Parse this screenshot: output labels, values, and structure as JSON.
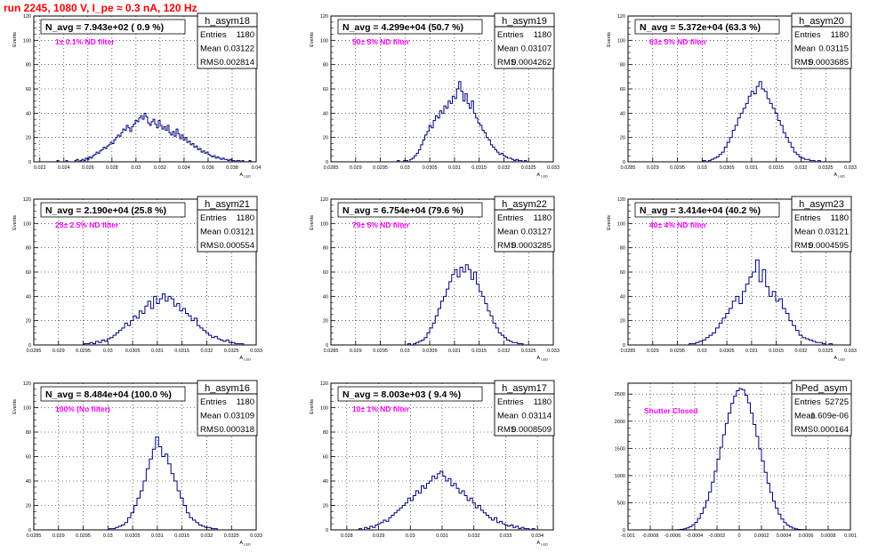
{
  "page_title": "run 2245,  1080 V, I_pe ≈ 0.3 nA, 120 Hz",
  "stats_labels": {
    "entries": "Entries",
    "mean": "Mean",
    "rms": "RMS"
  },
  "colors": {
    "title": "#ff0000",
    "annotation": "#ff00ff",
    "histogram": "#000080",
    "frame": "#000000"
  },
  "chart_data": [
    {
      "type": "histogram",
      "name": "h_asym18",
      "nav": "N_avg = 7.943e+02 ( 0.9 %)",
      "annotation": "1± 0.1% ND filter",
      "entries": "1180",
      "mean": "0.03122",
      "rms": "0.002814",
      "xlabel": "A_LED",
      "ylabel": "Events",
      "xlim": [
        0.0215,
        0.04
      ],
      "ylim": [
        0,
        120
      ],
      "xticks": [
        0.022,
        0.024,
        0.026,
        0.028,
        0.03,
        0.032,
        0.034,
        0.036,
        0.038,
        0.04
      ],
      "xtick_labels": [
        "0.022",
        "0.024",
        "0.026",
        "0.028",
        "0.03",
        "0.032",
        "0.034",
        "0.036",
        "0.038",
        "0.04"
      ],
      "yticks": [
        0,
        20,
        40,
        60,
        80,
        100,
        120
      ],
      "xmin": 0.0215,
      "xmax": 0.04,
      "values": [
        0,
        0,
        0,
        0,
        0,
        0,
        0,
        0,
        0,
        0,
        0,
        0,
        0,
        1,
        0,
        0,
        0,
        0,
        1,
        0,
        0,
        0,
        0,
        1,
        2,
        0,
        1,
        2,
        1,
        3,
        2,
        4,
        3,
        5,
        6,
        8,
        7,
        9,
        10,
        12,
        11,
        13,
        14,
        16,
        15,
        18,
        20,
        22,
        21,
        24,
        27,
        26,
        30,
        28,
        25,
        29,
        31,
        34,
        33,
        36,
        38,
        35,
        40,
        37,
        32,
        30,
        33,
        35,
        31,
        28,
        34,
        30,
        27,
        29,
        26,
        30,
        24,
        22,
        25,
        21,
        27,
        23,
        19,
        22,
        18,
        20,
        16,
        17,
        14,
        15,
        12,
        13,
        10,
        11,
        8,
        9,
        7,
        8,
        6,
        5,
        4,
        5,
        3,
        4,
        3,
        2,
        3,
        2,
        2,
        1,
        2,
        1,
        1,
        0,
        1,
        1,
        0,
        1,
        0,
        0,
        0,
        1,
        0,
        0,
        0
      ]
    },
    {
      "type": "histogram",
      "name": "h_asym19",
      "nav": "N_avg = 4.299e+04 (50.7 %)",
      "annotation": "50± 5% ND filter",
      "entries": "1180",
      "mean": "0.03107",
      "rms": "0.0004262",
      "xlabel": "A_LED",
      "ylabel": "Events",
      "xlim": [
        0.0285,
        0.033
      ],
      "ylim": [
        0,
        120
      ],
      "xticks": [
        0.0285,
        0.029,
        0.0295,
        0.03,
        0.0305,
        0.031,
        0.0315,
        0.032,
        0.0325,
        0.033
      ],
      "xtick_labels": [
        "0.0285",
        "0.029",
        "0.0295",
        "0.03",
        "0.0305",
        "0.031",
        "0.0315",
        "0.032",
        "0.0325",
        "0.033"
      ],
      "yticks": [
        0,
        20,
        40,
        60,
        80,
        100,
        120
      ],
      "xmin": 0.0295,
      "xmax": 0.0325,
      "values": [
        0,
        0,
        0,
        0,
        0,
        0,
        0,
        0,
        1,
        0,
        0,
        1,
        1,
        0,
        2,
        3,
        5,
        7,
        10,
        14,
        18,
        22,
        25,
        30,
        28,
        34,
        38,
        36,
        42,
        40,
        46,
        44,
        50,
        48,
        54,
        52,
        60,
        66,
        58,
        50,
        56,
        48,
        44,
        50,
        40,
        36,
        32,
        30,
        26,
        24,
        20,
        18,
        14,
        12,
        10,
        8,
        6,
        7,
        5,
        4,
        3,
        3,
        2,
        1,
        2,
        1,
        1,
        0,
        1,
        0
      ]
    },
    {
      "type": "histogram",
      "name": "h_asym20",
      "nav": "N_avg = 5.372e+04 (63.3 %)",
      "annotation": "63± 5% ND filter",
      "entries": "1180",
      "mean": "0.03115",
      "rms": "0.0003685",
      "xlabel": "A_LED",
      "ylabel": "Events",
      "xlim": [
        0.0285,
        0.033
      ],
      "ylim": [
        0,
        120
      ],
      "xticks": [
        0.0285,
        0.029,
        0.0295,
        0.03,
        0.0305,
        0.031,
        0.0315,
        0.032,
        0.0325,
        0.033
      ],
      "xtick_labels": [
        "0.0285",
        "0.029",
        "0.0295",
        "0.03",
        "0.0305",
        "0.031",
        "0.0315",
        "0.032",
        "0.0325",
        "0.033"
      ],
      "yticks": [
        0,
        20,
        40,
        60,
        80,
        100,
        120
      ],
      "xmin": 0.0298,
      "xmax": 0.0325,
      "values": [
        0,
        0,
        0,
        0,
        1,
        0,
        1,
        2,
        3,
        4,
        6,
        8,
        12,
        16,
        20,
        26,
        30,
        36,
        40,
        44,
        48,
        54,
        58,
        56,
        62,
        66,
        60,
        58,
        52,
        48,
        44,
        40,
        34,
        30,
        24,
        20,
        16,
        12,
        8,
        6,
        4,
        3,
        2,
        2,
        1,
        1,
        0,
        1,
        0,
        0
      ]
    },
    {
      "type": "histogram",
      "name": "h_asym21",
      "nav": "N_avg = 2.190e+04 (25.8 %)",
      "annotation": "25± 2.5% ND filter",
      "entries": "1180",
      "mean": "0.03121",
      "rms": "0.000554",
      "xlabel": "A_LED",
      "ylabel": "Events",
      "xlim": [
        0.0285,
        0.033
      ],
      "ylim": [
        0,
        120
      ],
      "xticks": [
        0.0285,
        0.029,
        0.0295,
        0.03,
        0.0305,
        0.031,
        0.0315,
        0.032,
        0.0325,
        0.033
      ],
      "xtick_labels": [
        "0.0285",
        "0.029",
        "0.0295",
        "0.03",
        "0.0305",
        "0.031",
        "0.0315",
        "0.032",
        "0.0325",
        "0.033"
      ],
      "yticks": [
        0,
        20,
        40,
        60,
        80,
        100,
        120
      ],
      "xmin": 0.0294,
      "xmax": 0.0328,
      "values": [
        0,
        0,
        1,
        1,
        2,
        1,
        3,
        2,
        4,
        3,
        5,
        6,
        8,
        10,
        12,
        14,
        18,
        16,
        20,
        24,
        22,
        28,
        26,
        32,
        36,
        30,
        40,
        34,
        38,
        42,
        36,
        40,
        38,
        32,
        34,
        28,
        30,
        26,
        24,
        20,
        22,
        16,
        14,
        12,
        10,
        8,
        6,
        7,
        5,
        4,
        3,
        4,
        2,
        2,
        1,
        1,
        1,
        0
      ]
    },
    {
      "type": "histogram",
      "name": "h_asym22",
      "nav": "N_avg = 6.754e+04 (79.6 %)",
      "annotation": "79± 5% ND filter",
      "entries": "1180",
      "mean": "0.03127",
      "rms": "0.0003285",
      "xlabel": "A_LED",
      "ylabel": "Events",
      "xlim": [
        0.0285,
        0.033
      ],
      "ylim": [
        0,
        120
      ],
      "xticks": [
        0.0285,
        0.029,
        0.0295,
        0.03,
        0.0305,
        0.031,
        0.0315,
        0.032,
        0.0325,
        0.033
      ],
      "xtick_labels": [
        "0.0285",
        "0.029",
        "0.0295",
        "0.03",
        "0.0305",
        "0.031",
        "0.0315",
        "0.032",
        "0.0325",
        "0.033"
      ],
      "yticks": [
        0,
        20,
        40,
        60,
        80,
        100,
        120
      ],
      "xmin": 0.03,
      "xmax": 0.0325,
      "values": [
        0,
        1,
        0,
        1,
        2,
        3,
        4,
        6,
        10,
        14,
        18,
        24,
        30,
        36,
        40,
        46,
        52,
        58,
        62,
        56,
        64,
        60,
        66,
        62,
        54,
        60,
        50,
        44,
        40,
        34,
        28,
        24,
        18,
        14,
        10,
        8,
        6,
        4,
        3,
        2,
        2,
        1,
        1,
        0,
        0
      ]
    },
    {
      "type": "histogram",
      "name": "h_asym23",
      "nav": "N_avg = 3.414e+04 (40.2 %)",
      "annotation": "40± 4% ND filter",
      "entries": "1180",
      "mean": "0.03121",
      "rms": "0.0004595",
      "xlabel": "A_LED",
      "ylabel": "Events",
      "xlim": [
        0.0285,
        0.033
      ],
      "ylim": [
        0,
        120
      ],
      "xticks": [
        0.0285,
        0.029,
        0.0295,
        0.03,
        0.0305,
        0.031,
        0.0315,
        0.032,
        0.0325,
        0.033
      ],
      "xtick_labels": [
        "0.0285",
        "0.029",
        "0.0295",
        "0.03",
        "0.0305",
        "0.031",
        "0.0315",
        "0.032",
        "0.0325",
        "0.033"
      ],
      "yticks": [
        0,
        20,
        40,
        60,
        80,
        100,
        120
      ],
      "xmin": 0.0296,
      "xmax": 0.0327,
      "values": [
        0,
        0,
        1,
        1,
        2,
        3,
        4,
        6,
        8,
        10,
        14,
        18,
        22,
        26,
        30,
        36,
        40,
        34,
        44,
        50,
        56,
        60,
        70,
        52,
        62,
        48,
        40,
        44,
        36,
        38,
        30,
        26,
        20,
        16,
        12,
        8,
        6,
        5,
        4,
        3,
        2,
        2,
        1,
        0,
        1,
        0
      ]
    },
    {
      "type": "histogram",
      "name": "h_asym16",
      "nav": "N_avg = 8.484e+04 (100.0 %)",
      "annotation": "100% (No filter)",
      "entries": "1180",
      "mean": "0.03109",
      "rms": "0.000318",
      "xlabel": "A_LED",
      "ylabel": "Events",
      "xlim": [
        0.0285,
        0.033
      ],
      "ylim": [
        0,
        120
      ],
      "xticks": [
        0.0285,
        0.029,
        0.0295,
        0.03,
        0.0305,
        0.031,
        0.0315,
        0.032,
        0.0325,
        0.033
      ],
      "xtick_labels": [
        "0.0285",
        "0.029",
        "0.0295",
        "0.03",
        "0.0305",
        "0.031",
        "0.0315",
        "0.032",
        "0.0325",
        "0.033"
      ],
      "yticks": [
        0,
        20,
        40,
        60,
        80,
        100,
        120
      ],
      "xmin": 0.0299,
      "xmax": 0.0324,
      "values": [
        0,
        0,
        1,
        1,
        2,
        3,
        4,
        6,
        10,
        14,
        20,
        26,
        32,
        40,
        50,
        58,
        66,
        76,
        68,
        60,
        62,
        54,
        46,
        40,
        32,
        26,
        20,
        14,
        10,
        8,
        6,
        4,
        3,
        2,
        2,
        1,
        1,
        0,
        0,
        0
      ]
    },
    {
      "type": "histogram",
      "name": "h_asym17",
      "nav": "N_avg = 8.003e+03 ( 9.4 %)",
      "annotation": "10± 1% ND filter",
      "entries": "1180",
      "mean": "0.03114",
      "rms": "0.0008509",
      "xlabel": "A_LED",
      "ylabel": "Events",
      "xlim": [
        0.0275,
        0.0345
      ],
      "ylim": [
        0,
        120
      ],
      "xticks": [
        0.028,
        0.029,
        0.03,
        0.031,
        0.032,
        0.033,
        0.034
      ],
      "xtick_labels": [
        "0.028",
        "0.029",
        "0.03",
        "0.031",
        "0.032",
        "0.033",
        "0.034"
      ],
      "yticks": [
        0,
        20,
        40,
        60,
        80,
        100,
        120
      ],
      "xmin": 0.0283,
      "xmax": 0.034,
      "values": [
        0,
        1,
        0,
        2,
        1,
        3,
        2,
        4,
        5,
        6,
        8,
        7,
        10,
        12,
        14,
        16,
        18,
        20,
        22,
        26,
        24,
        28,
        32,
        30,
        36,
        34,
        38,
        40,
        44,
        42,
        46,
        48,
        44,
        40,
        42,
        36,
        38,
        34,
        30,
        32,
        28,
        24,
        26,
        22,
        18,
        20,
        16,
        14,
        12,
        10,
        8,
        10,
        6,
        7,
        5,
        4,
        3,
        4,
        2,
        3,
        1,
        2,
        1,
        1,
        0,
        1,
        0
      ]
    },
    {
      "type": "histogram",
      "name": "hPed_asym",
      "nav": "",
      "annotation": "Shutter Closed",
      "entries": "52725",
      "mean": "-1.609e-06",
      "rms": "0.000164",
      "xlabel": "",
      "ylabel": "",
      "xlim": [
        -0.001,
        0.001
      ],
      "ylim": [
        0,
        2700
      ],
      "xticks": [
        -0.001,
        -0.0008,
        -0.0006,
        -0.0004,
        -0.0002,
        0,
        0.0002,
        0.0004,
        0.0006,
        0.0008,
        0.001
      ],
      "xtick_labels": [
        "-0.001",
        "-0.0008",
        "-0.0006",
        "-0.0004",
        "-0.0002",
        "0",
        "0.0002",
        "0.0004",
        "0.0006",
        "0.0008",
        "0.001"
      ],
      "yticks": [
        0,
        500,
        1000,
        1500,
        2000,
        2500
      ],
      "xmin": -0.0006,
      "xmax": 0.0006,
      "values": [
        0,
        2,
        5,
        10,
        20,
        36,
        60,
        95,
        140,
        210,
        300,
        410,
        540,
        700,
        880,
        1080,
        1300,
        1520,
        1750,
        1960,
        2150,
        2330,
        2460,
        2560,
        2600,
        2580,
        2480,
        2340,
        2150,
        1940,
        1720,
        1490,
        1270,
        1060,
        860,
        690,
        530,
        400,
        290,
        200,
        135,
        88,
        55,
        32,
        18,
        9,
        4,
        2
      ]
    }
  ]
}
